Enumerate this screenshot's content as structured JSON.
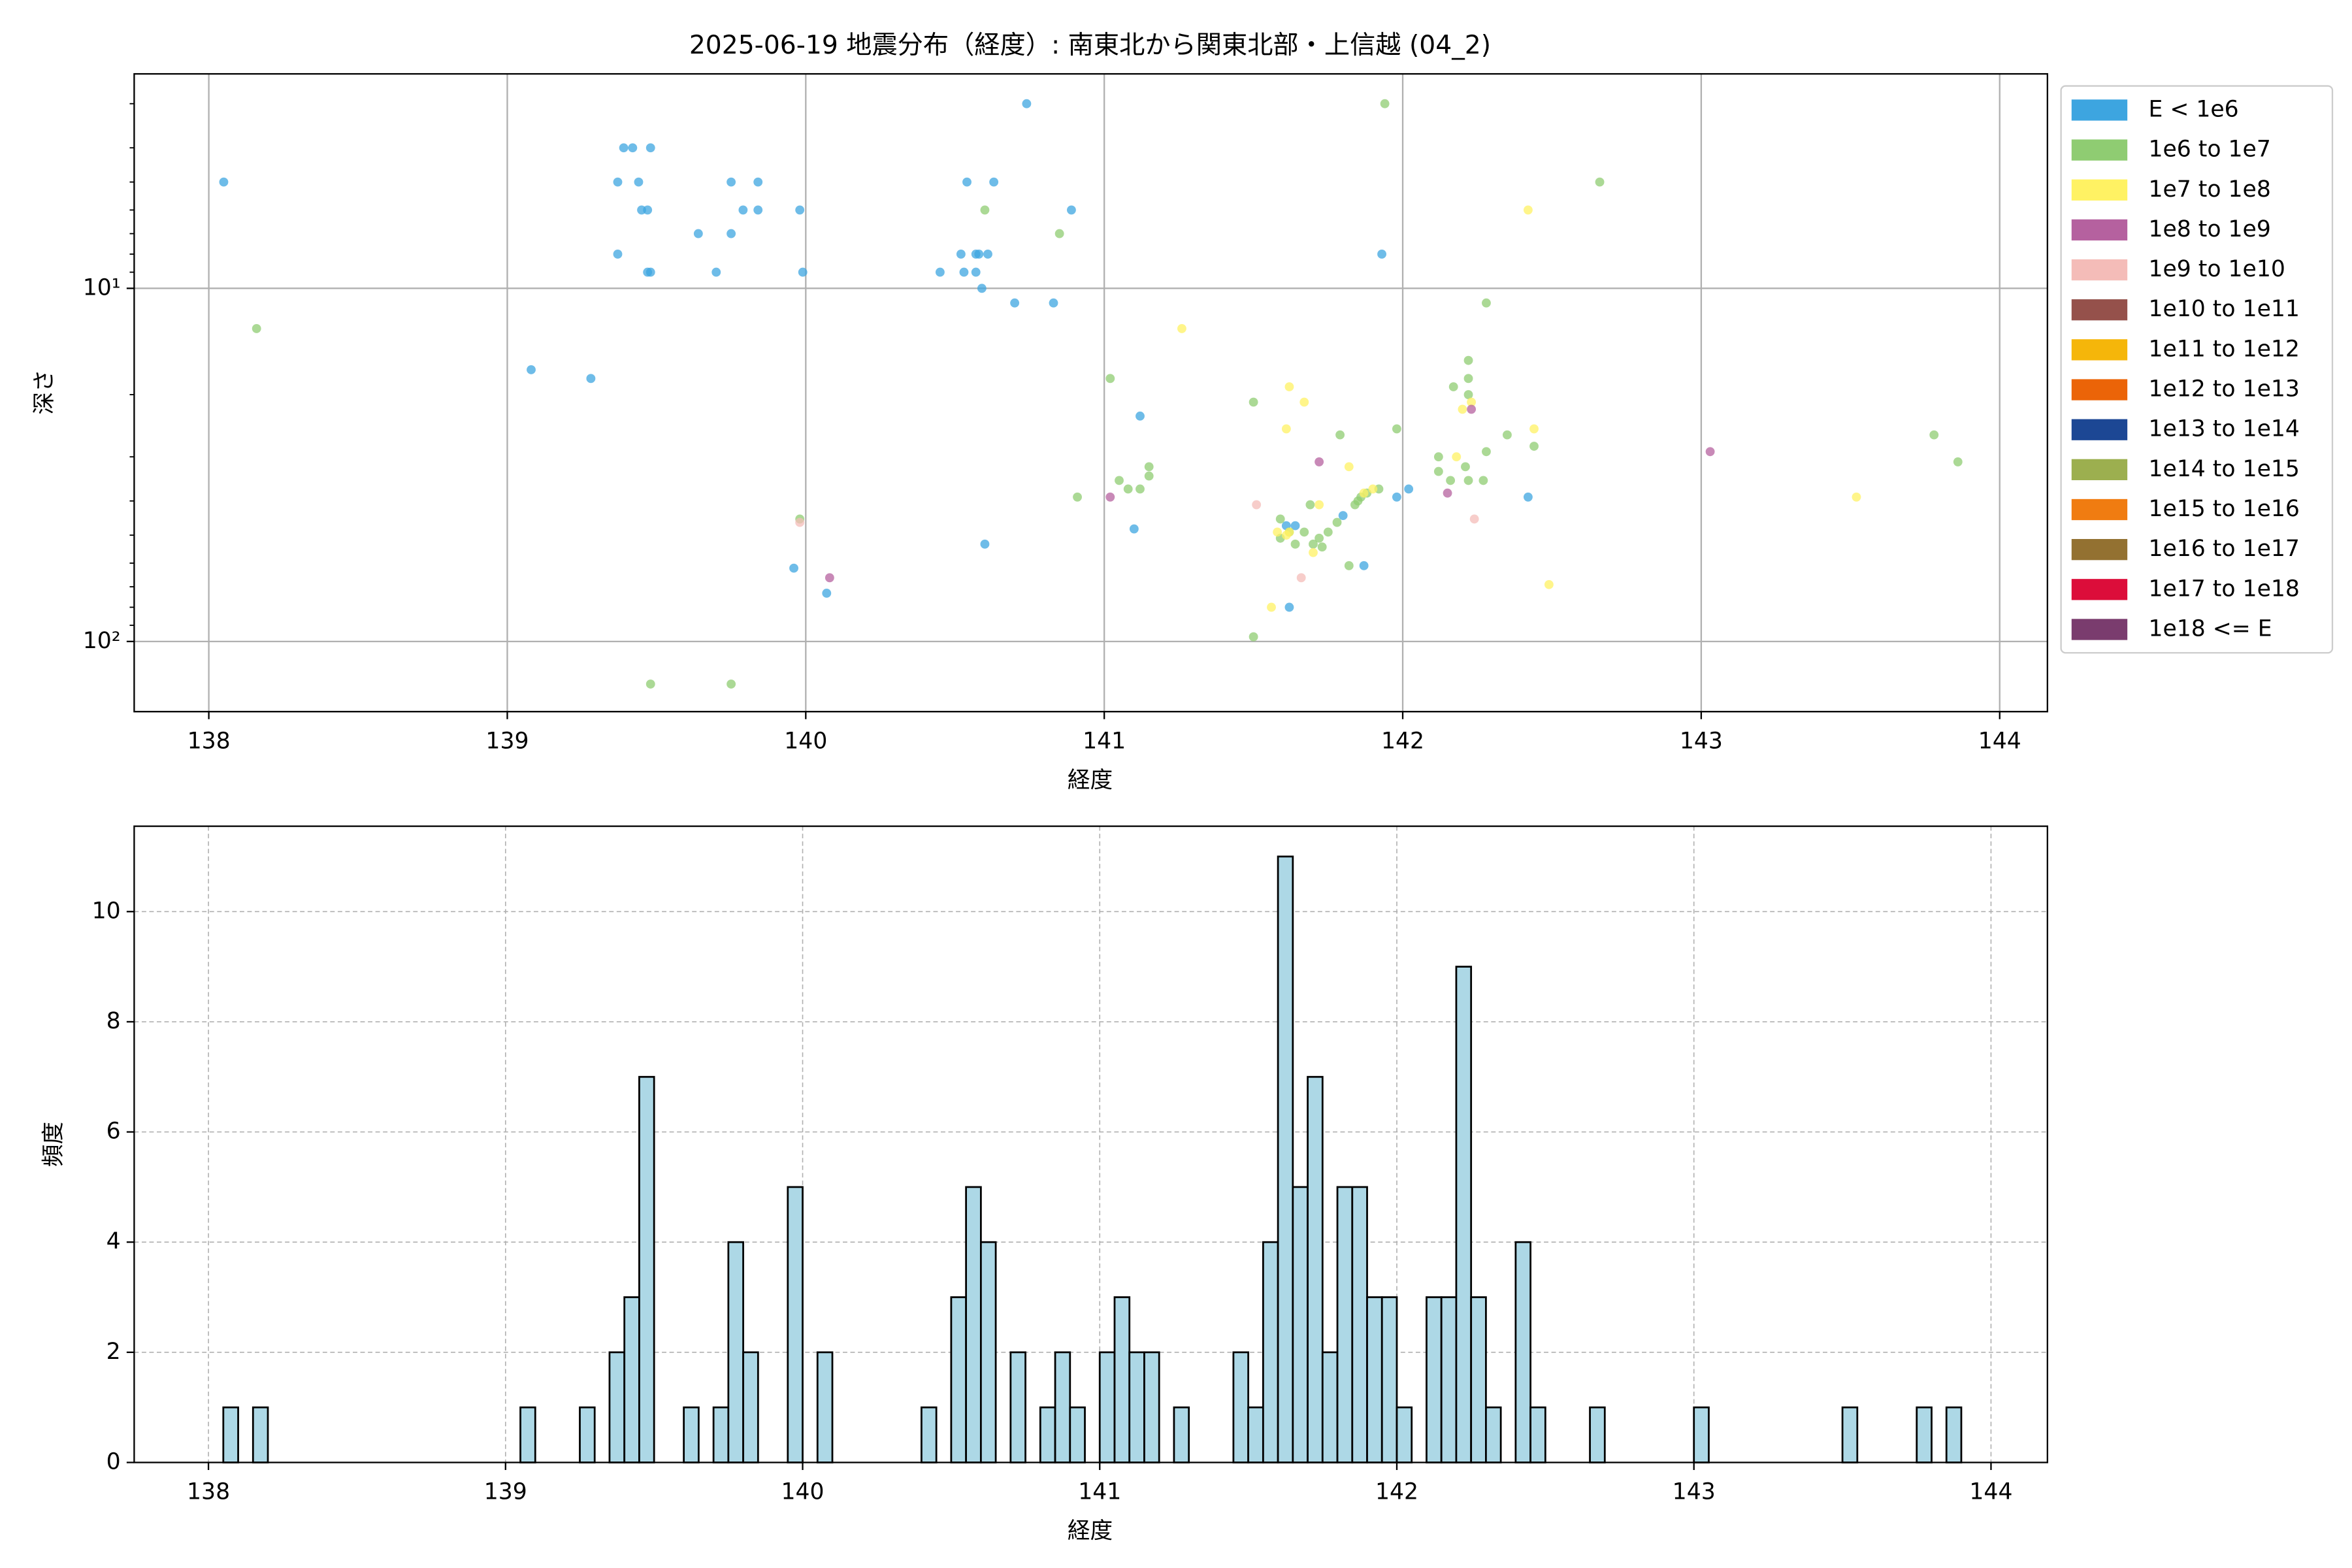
{
  "chart_data": [
    {
      "type": "scatter",
      "title": "2025-06-19 地震分布（経度）: 南東北から関東北部・上信越 (04_2)",
      "xlabel": "経度",
      "ylabel": "深さ",
      "xlim": [
        137.75,
        144.16
      ],
      "xticks": [
        138,
        139,
        140,
        141,
        142,
        143,
        144
      ],
      "ylim": [
        158,
        2.47
      ],
      "yscale": "log",
      "yticks": [
        {
          "value": 10,
          "label": "10¹"
        },
        {
          "value": 100,
          "label": "10²"
        }
      ],
      "yminorticks": [
        3,
        4,
        5,
        6,
        7,
        8,
        9,
        20,
        30,
        40,
        50,
        60,
        70,
        80,
        90
      ],
      "grid": true,
      "grid_linestyle": "solid",
      "legend": "outside upper right",
      "series": [
        {
          "name": "E < 1e6",
          "color": "#3da5e0",
          "x": [
            138.05,
            139.08,
            139.28,
            139.37,
            139.37,
            139.39,
            139.42,
            139.44,
            139.45,
            139.47,
            139.48,
            139.47,
            139.48,
            139.64,
            139.7,
            139.75,
            139.75,
            139.79,
            139.84,
            139.84,
            139.98,
            139.99,
            139.96,
            140.07,
            140.45,
            140.52,
            140.53,
            140.54,
            140.57,
            140.58,
            140.61,
            140.57,
            140.59,
            140.6,
            140.63,
            140.7,
            140.74,
            140.83,
            140.89,
            141.12,
            141.1,
            141.61,
            141.64,
            141.62,
            141.8,
            141.87,
            141.93,
            141.98,
            142.02,
            142.42
          ],
          "values": [
            5,
            17,
            18,
            8,
            5,
            4,
            4,
            5,
            6,
            6,
            4,
            9,
            9,
            7,
            9,
            7,
            5,
            6,
            5,
            6,
            6,
            9,
            62,
            73,
            9,
            8,
            9,
            5,
            8,
            8,
            8,
            9,
            10,
            53,
            5,
            11,
            3,
            11,
            6,
            23,
            48,
            47,
            47,
            80,
            44,
            61,
            8,
            39,
            37,
            39
          ]
        },
        {
          "name": "1e6 to 1e7",
          "color": "#8fcc72",
          "x": [
            138.16,
            139.48,
            139.75,
            139.98,
            140.6,
            140.85,
            140.91,
            141.02,
            141.05,
            141.08,
            141.12,
            141.15,
            141.15,
            141.5,
            141.5,
            141.59,
            141.59,
            141.62,
            141.64,
            141.67,
            141.69,
            141.7,
            141.72,
            141.73,
            141.75,
            141.78,
            141.79,
            141.82,
            141.84,
            141.85,
            141.86,
            141.88,
            141.92,
            141.94,
            141.98,
            142.12,
            142.12,
            142.16,
            142.17,
            142.21,
            142.22,
            142.22,
            142.22,
            142.22,
            142.27,
            142.28,
            142.28,
            142.35,
            142.44,
            142.66,
            143.78,
            143.86
          ],
          "values": [
            13,
            132,
            132,
            45,
            6,
            7,
            39,
            18,
            35,
            37,
            37,
            34,
            32,
            21,
            97,
            45,
            51,
            49,
            53,
            49,
            41,
            53,
            51,
            54,
            49,
            46,
            26,
            61,
            41,
            40,
            39,
            38,
            37,
            3,
            25,
            33,
            30,
            35,
            19,
            32,
            35,
            16,
            18,
            20,
            35,
            11,
            29,
            26,
            28,
            5,
            26,
            31
          ]
        },
        {
          "name": "1e7 to 1e8",
          "color": "#fff263",
          "x": [
            141.26,
            141.62,
            141.61,
            141.67,
            141.56,
            141.58,
            141.61,
            141.62,
            141.7,
            141.72,
            141.82,
            141.87,
            141.9,
            142.18,
            142.2,
            142.23,
            142.42,
            142.44,
            142.49,
            143.52
          ],
          "values": [
            13,
            19,
            25,
            21,
            80,
            49,
            50,
            49,
            56,
            41,
            32,
            38,
            37,
            30,
            22,
            21,
            6,
            25,
            69,
            39
          ]
        },
        {
          "name": "1e8 to 1e9",
          "color": "#b5619f",
          "x": [
            140.08,
            141.02,
            141.72,
            142.15,
            142.23,
            143.03
          ],
          "values": [
            66,
            39,
            31,
            38,
            22,
            29
          ]
        },
        {
          "name": "1e9 to 1e10",
          "color": "#f4bcb8",
          "x": [
            139.98,
            141.51,
            141.66,
            142.24
          ],
          "values": [
            46,
            41,
            66,
            45
          ]
        },
        {
          "name": "1e10 to 1e11",
          "color": "#95514b",
          "x": [],
          "values": []
        },
        {
          "name": "1e11 to 1e12",
          "color": "#f5b60a",
          "x": [],
          "values": []
        },
        {
          "name": "1e12 to 1e13",
          "color": "#eb6408",
          "x": [],
          "values": []
        },
        {
          "name": "1e13 to 1e14",
          "color": "#1c4794",
          "x": [],
          "values": []
        },
        {
          "name": "1e14 to 1e15",
          "color": "#9caf4f",
          "x": [],
          "values": []
        },
        {
          "name": "1e15 to 1e16",
          "color": "#f07c11",
          "x": [],
          "values": []
        },
        {
          "name": "1e16 to 1e17",
          "color": "#937131",
          "x": [],
          "values": []
        },
        {
          "name": "1e17 to 1e18",
          "color": "#dc0d3a",
          "x": [],
          "values": []
        },
        {
          "name": "1e18 <= E",
          "color": "#7a3c6e",
          "x": [],
          "values": []
        }
      ]
    },
    {
      "type": "histogram",
      "xlabel": "経度",
      "ylabel": "頻度",
      "xlim": [
        137.75,
        144.19
      ],
      "xticks": [
        138,
        139,
        140,
        141,
        142,
        143,
        144
      ],
      "ylim": [
        0,
        11.55
      ],
      "yticks": [
        0,
        2,
        4,
        6,
        8,
        10
      ],
      "grid": true,
      "grid_linestyle": "dashed",
      "color": "#add8e6",
      "edgecolor": "#000000",
      "bins": [
        138,
        138.05,
        138.1,
        138.15,
        138.2,
        138.25,
        138.3,
        138.35,
        138.4,
        138.45,
        138.5,
        138.55,
        138.6,
        138.65,
        138.7,
        138.75,
        138.8,
        138.85,
        138.9,
        138.95,
        139,
        139.05,
        139.1,
        139.15,
        139.2,
        139.25,
        139.3,
        139.35,
        139.4,
        139.45,
        139.5,
        139.55,
        139.6,
        139.65,
        139.7,
        139.75,
        139.8,
        139.85,
        139.9,
        139.95,
        140,
        140.05,
        140.1,
        140.15,
        140.2,
        140.25,
        140.3,
        140.35,
        140.4,
        140.45,
        140.5,
        140.55,
        140.6,
        140.65,
        140.7,
        140.75,
        140.8,
        140.85,
        140.9,
        140.95,
        141,
        141.05,
        141.1,
        141.15,
        141.2,
        141.25,
        141.3,
        141.35,
        141.4,
        141.45,
        141.5,
        141.55,
        141.6,
        141.65,
        141.7,
        141.75,
        141.8,
        141.85,
        141.9,
        141.95,
        142,
        142.05,
        142.1,
        142.15,
        142.2,
        142.25,
        142.3,
        142.35,
        142.4,
        142.45,
        142.5,
        142.55,
        142.6,
        142.65,
        142.7,
        142.75,
        142.8,
        142.85,
        142.9,
        142.95,
        143,
        143.05,
        143.1,
        143.15,
        143.2,
        143.25,
        143.3,
        143.35,
        143.4,
        143.45,
        143.5,
        143.55,
        143.6,
        143.65,
        143.7,
        143.75,
        143.8,
        143.85,
        143.9,
        143.95,
        144
      ],
      "values": [
        0,
        1,
        0,
        1,
        0,
        0,
        0,
        0,
        0,
        0,
        0,
        0,
        0,
        0,
        0,
        0,
        0,
        0,
        0,
        0,
        0,
        1,
        0,
        0,
        0,
        1,
        0,
        2,
        3,
        7,
        0,
        0,
        1,
        0,
        1,
        4,
        2,
        0,
        0,
        5,
        0,
        2,
        0,
        0,
        0,
        0,
        0,
        0,
        1,
        0,
        3,
        5,
        4,
        0,
        2,
        0,
        1,
        2,
        1,
        0,
        2,
        3,
        2,
        2,
        0,
        1,
        0,
        0,
        0,
        2,
        1,
        4,
        11,
        5,
        7,
        2,
        5,
        5,
        3,
        3,
        1,
        0,
        3,
        3,
        9,
        3,
        1,
        0,
        4,
        1,
        0,
        0,
        0,
        1,
        0,
        0,
        0,
        0,
        0,
        0,
        1,
        0,
        0,
        0,
        0,
        0,
        0,
        0,
        0,
        0,
        1,
        0,
        0,
        0,
        0,
        1,
        0,
        1,
        0,
        0
      ]
    }
  ]
}
